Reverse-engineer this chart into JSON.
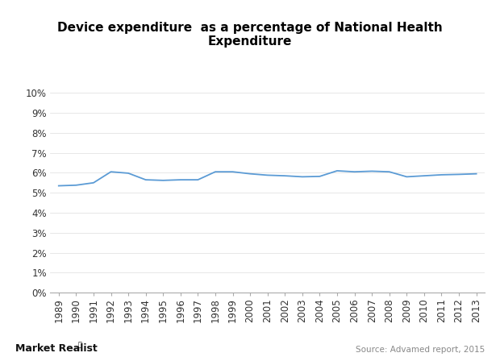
{
  "title": "Device expenditure  as a percentage of National Health\nExpenditure",
  "years": [
    1989,
    1990,
    1991,
    1992,
    1993,
    1994,
    1995,
    1996,
    1997,
    1998,
    1999,
    2000,
    2001,
    2002,
    2003,
    2004,
    2005,
    2006,
    2007,
    2008,
    2009,
    2010,
    2011,
    2012,
    2013
  ],
  "values": [
    5.35,
    5.38,
    5.5,
    6.05,
    5.98,
    5.65,
    5.62,
    5.65,
    5.65,
    6.05,
    6.05,
    5.95,
    5.88,
    5.85,
    5.8,
    5.82,
    6.1,
    6.05,
    6.08,
    6.05,
    5.8,
    5.85,
    5.9,
    5.92,
    5.95
  ],
  "line_color": "#5b9bd5",
  "bg_color": "#ffffff",
  "plot_bg_color": "#ffffff",
  "ylim": [
    0,
    10
  ],
  "ytick_labels": [
    "0%",
    "1%",
    "2%",
    "3%",
    "4%",
    "5%",
    "6%",
    "7%",
    "8%",
    "9%",
    "10%"
  ],
  "ytick_values": [
    0,
    1,
    2,
    3,
    4,
    5,
    6,
    7,
    8,
    9,
    10
  ],
  "source_text": "Source: Advamed report, 2015",
  "brand_text": "Market Realist",
  "title_fontsize": 11,
  "tick_fontsize": 8.5,
  "brand_fontsize": 9,
  "source_fontsize": 7.5
}
